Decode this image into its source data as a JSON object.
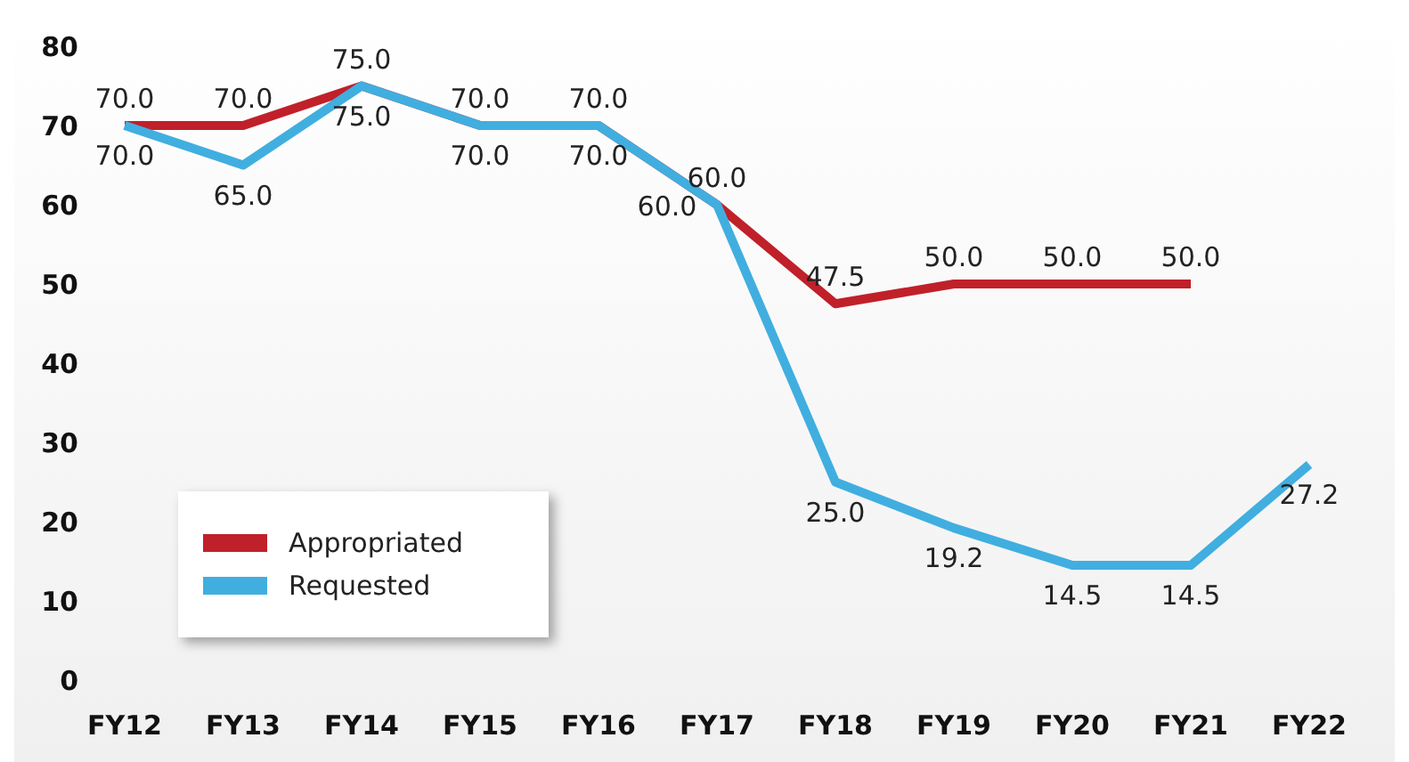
{
  "chart_data": {
    "type": "line",
    "categories": [
      "FY12",
      "FY13",
      "FY14",
      "FY15",
      "FY16",
      "FY17",
      "FY18",
      "FY19",
      "FY20",
      "FY21",
      "FY22"
    ],
    "series": [
      {
        "name": "Appropriated",
        "color": "#c0202a",
        "values": [
          70,
          70,
          75,
          70,
          70,
          60,
          47.5,
          50,
          50,
          50,
          null
        ],
        "value_labels": [
          "70.0",
          "70.0",
          "75.0",
          "70.0",
          "70.0",
          "60.0",
          "47.5",
          "50.0",
          "50.0",
          "50.0",
          null
        ]
      },
      {
        "name": "Requested",
        "color": "#41aee0",
        "values": [
          70,
          65,
          75,
          70,
          70,
          60,
          25,
          19.2,
          14.5,
          14.5,
          27.2
        ],
        "value_labels": [
          "70.0",
          "65.0",
          "75.0",
          "70.0",
          "70.0",
          "60.0",
          "25.0",
          "19.2",
          "14.5",
          "14.5",
          "27.2"
        ]
      }
    ],
    "ylim": [
      0,
      80
    ],
    "yticks": [
      0,
      10,
      20,
      30,
      40,
      50,
      60,
      70,
      80
    ],
    "grid": false,
    "legend": "bottom left",
    "marker": "none",
    "line_style": "solid"
  }
}
